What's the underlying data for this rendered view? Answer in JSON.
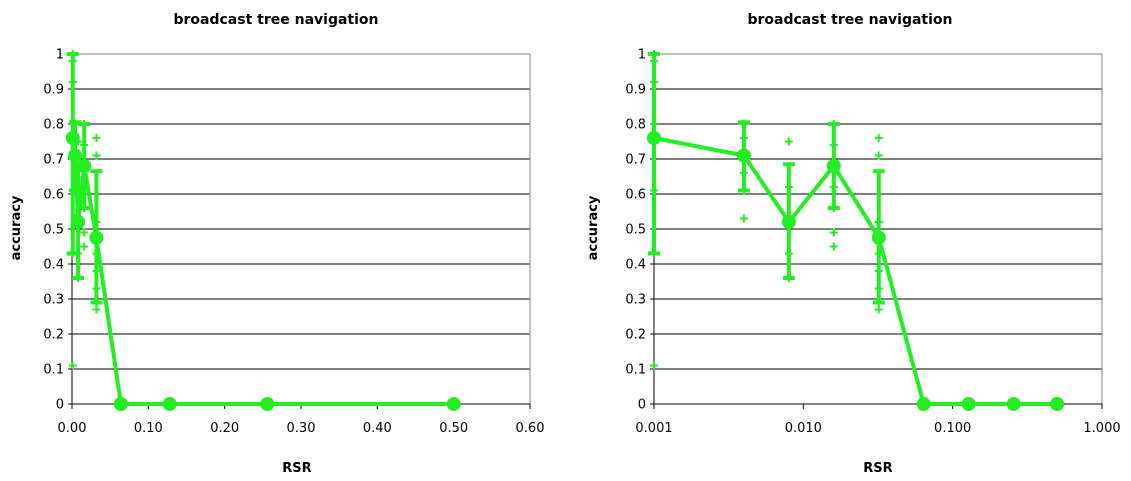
{
  "chart_data": [
    {
      "type": "line",
      "title": "broadcast tree navigation",
      "xlabel": "RSR",
      "ylabel": "accuracy",
      "xscale": "linear",
      "xlim": [
        0,
        0.6
      ],
      "ylim": [
        0,
        1
      ],
      "grid": "horizontal",
      "color": "#22ee22",
      "xticks": [
        "0.00",
        "0.10",
        "0.20",
        "0.30",
        "0.40",
        "0.50",
        "0.60"
      ],
      "yticks": [
        "0",
        "0.1",
        "0.2",
        "0.3",
        "0.4",
        "0.5",
        "0.6",
        "0.7",
        "0.8",
        "0.9",
        "1"
      ],
      "series": [
        {
          "x": [
            0.001,
            0.004,
            0.008,
            0.016,
            0.032,
            0.064,
            0.128,
            0.256,
            0.5
          ],
          "y": [
            0.76,
            0.71,
            0.52,
            0.68,
            0.475,
            0,
            0,
            0,
            0
          ],
          "err_low": [
            0.43,
            0.61,
            0.36,
            0.56,
            0.29,
            0,
            0,
            0,
            0
          ],
          "err_high": [
            1.0,
            0.805,
            0.685,
            0.8,
            0.665,
            0,
            0,
            0,
            0
          ]
        }
      ],
      "scatter": [
        {
          "x": 0.001,
          "y": [
            0.11,
            0.43,
            0.61,
            0.8,
            0.92,
            0.98,
            1.0
          ]
        },
        {
          "x": 0.004,
          "y": [
            0.53,
            0.61,
            0.66,
            0.71,
            0.76,
            0.8
          ]
        },
        {
          "x": 0.008,
          "y": [
            0.36,
            0.43,
            0.52,
            0.62,
            0.75
          ]
        },
        {
          "x": 0.016,
          "y": [
            0.45,
            0.49,
            0.56,
            0.62,
            0.68,
            0.74,
            0.8
          ]
        },
        {
          "x": 0.032,
          "y": [
            0.27,
            0.29,
            0.33,
            0.38,
            0.43,
            0.48,
            0.52,
            0.71,
            0.76
          ]
        }
      ]
    },
    {
      "type": "line",
      "title": "broadcast tree navigation",
      "xlabel": "RSR",
      "ylabel": "accuracy",
      "xscale": "log",
      "xlim": [
        0.001,
        1
      ],
      "ylim": [
        0,
        1
      ],
      "grid": "horizontal",
      "color": "#22ee22",
      "xticks": [
        "0.001",
        "0.010",
        "0.100",
        "1.000"
      ],
      "yticks": [
        "0",
        "0.1",
        "0.2",
        "0.3",
        "0.4",
        "0.5",
        "0.6",
        "0.7",
        "0.8",
        "0.9",
        "1"
      ],
      "series": [
        {
          "x": [
            0.001,
            0.004,
            0.008,
            0.016,
            0.032,
            0.064,
            0.128,
            0.256,
            0.5
          ],
          "y": [
            0.76,
            0.71,
            0.52,
            0.68,
            0.475,
            0,
            0,
            0,
            0
          ],
          "err_low": [
            0.43,
            0.61,
            0.36,
            0.56,
            0.29,
            0,
            0,
            0,
            0
          ],
          "err_high": [
            1.0,
            0.805,
            0.685,
            0.8,
            0.665,
            0,
            0,
            0,
            0
          ]
        }
      ],
      "scatter": [
        {
          "x": 0.001,
          "y": [
            0.11,
            0.43,
            0.61,
            0.8,
            0.92,
            0.98,
            1.0
          ]
        },
        {
          "x": 0.004,
          "y": [
            0.53,
            0.61,
            0.66,
            0.71,
            0.76,
            0.8
          ]
        },
        {
          "x": 0.008,
          "y": [
            0.36,
            0.43,
            0.52,
            0.62,
            0.75
          ]
        },
        {
          "x": 0.016,
          "y": [
            0.45,
            0.49,
            0.56,
            0.62,
            0.68,
            0.74,
            0.8
          ]
        },
        {
          "x": 0.032,
          "y": [
            0.27,
            0.29,
            0.33,
            0.38,
            0.43,
            0.48,
            0.52,
            0.71,
            0.76
          ]
        }
      ]
    }
  ]
}
